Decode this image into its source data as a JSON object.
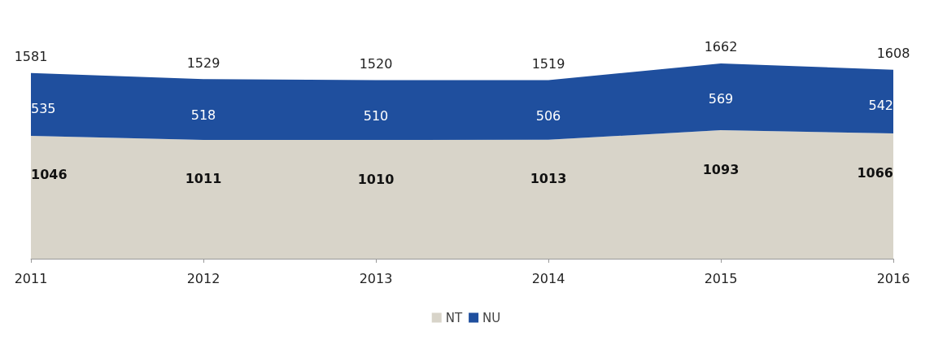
{
  "chart_data": {
    "type": "area",
    "stacked": true,
    "categories": [
      "2011",
      "2012",
      "2013",
      "2014",
      "2015",
      "2016"
    ],
    "series": [
      {
        "name": "NT",
        "color": "#d8d4c9",
        "values": [
          1046,
          1011,
          1010,
          1013,
          1093,
          1066
        ]
      },
      {
        "name": "NU",
        "color": "#1f4f9e",
        "values": [
          535,
          518,
          510,
          506,
          569,
          542
        ]
      }
    ],
    "totals": [
      "1581",
      "1529",
      "1520",
      "1519",
      "1662",
      "1608"
    ],
    "data_labels": true,
    "legend": "bottom",
    "grid": false
  }
}
